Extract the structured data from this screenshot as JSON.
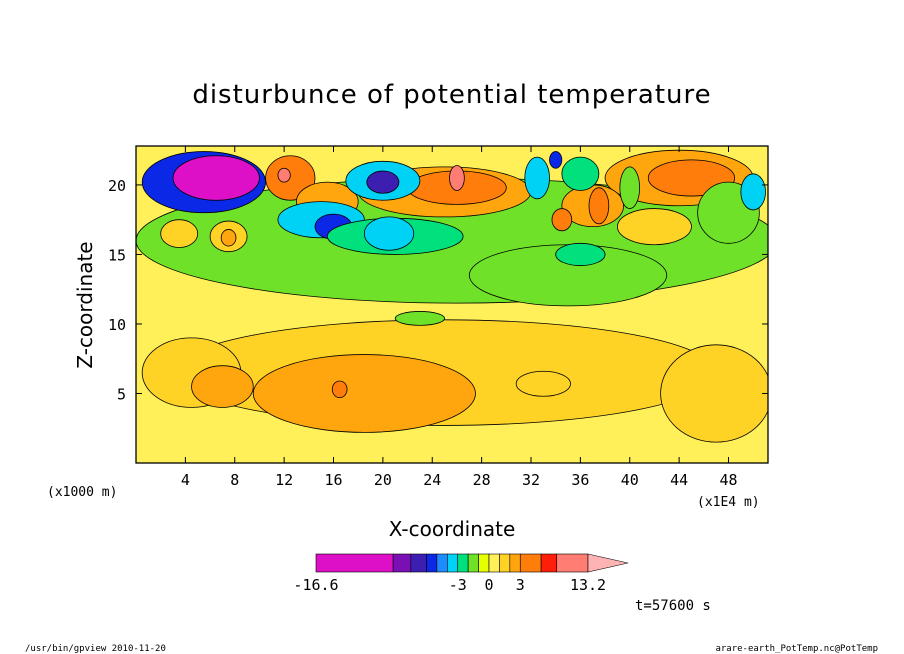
{
  "chart_data": {
    "type": "heatmap",
    "title": "disturbunce of potential temperature",
    "xlabel": "X-coordinate",
    "ylabel": "Z-coordinate",
    "x_unit_left": "(x1000 m)",
    "x_unit_right": "(x1E4 m)",
    "x_ticks": [
      "4",
      "8",
      "12",
      "16",
      "20",
      "24",
      "28",
      "32",
      "36",
      "40",
      "44",
      "48"
    ],
    "x_tick_values": [
      4,
      8,
      12,
      16,
      20,
      24,
      28,
      32,
      36,
      40,
      44,
      48
    ],
    "y_ticks": [
      "5",
      "10",
      "15",
      "20"
    ],
    "y_tick_values": [
      5,
      10,
      15,
      20
    ],
    "xlim": [
      0,
      51.2
    ],
    "ylim": [
      0,
      22.8
    ],
    "colorbar": {
      "min_label": "-16.6",
      "max_label": "13.2",
      "tick_labels": [
        "-3",
        "0",
        "3"
      ],
      "tick_values": [
        -3,
        0,
        3
      ],
      "levels": [
        -16.6,
        -9.2,
        -7.5,
        -6,
        -5,
        -4,
        -3,
        -2,
        -1,
        0,
        1,
        2,
        3,
        5,
        6.5,
        9.5,
        13.2
      ],
      "colors": [
        "#dd10c8",
        "#7a10b4",
        "#3c1eb0",
        "#0a28e6",
        "#1e8cff",
        "#00d2f5",
        "#00e17d",
        "#6ee128",
        "#e6ff00",
        "#fff05a",
        "#ffd226",
        "#ffa50d",
        "#ff7d0a",
        "#ff1e0a",
        "#ff7d73",
        "#ffb4b4"
      ]
    },
    "regions": [
      {
        "x": 25,
        "y": 6.5,
        "rx": 22,
        "ry": 3.8,
        "value": 1.5
      },
      {
        "x": 4.5,
        "y": 6.5,
        "rx": 4,
        "ry": 2.5,
        "value": 1.5
      },
      {
        "x": 33,
        "y": 5.7,
        "rx": 2.2,
        "ry": 0.9,
        "value": 1.5
      },
      {
        "x": 47,
        "y": 5,
        "rx": 4.5,
        "ry": 3.5,
        "value": 1.5
      },
      {
        "x": 18.5,
        "y": 5,
        "rx": 9,
        "ry": 2.8,
        "value": 2.5
      },
      {
        "x": 7,
        "y": 5.5,
        "rx": 2.5,
        "ry": 1.5,
        "value": 2.5
      },
      {
        "x": 16.5,
        "y": 5.3,
        "rx": 0.6,
        "ry": 0.6,
        "value": 3.5
      },
      {
        "x": 26,
        "y": 16,
        "rx": 26,
        "ry": 4.5,
        "value": -1.5
      },
      {
        "x": 35,
        "y": 13.5,
        "rx": 8,
        "ry": 2.2,
        "value": -1.5
      },
      {
        "x": 23,
        "y": 10.4,
        "rx": 2,
        "ry": 0.5,
        "value": -1.5
      },
      {
        "x": 25,
        "y": 19.5,
        "rx": 7,
        "ry": 1.8,
        "value": 2.5
      },
      {
        "x": 26,
        "y": 19.8,
        "rx": 4,
        "ry": 1.2,
        "value": 4
      },
      {
        "x": 26,
        "y": 20.5,
        "rx": 0.6,
        "ry": 0.9,
        "value": 7
      },
      {
        "x": 12.5,
        "y": 20.5,
        "rx": 2,
        "ry": 1.6,
        "value": 4
      },
      {
        "x": 12,
        "y": 20.7,
        "rx": 0.5,
        "ry": 0.5,
        "value": 7
      },
      {
        "x": 15.5,
        "y": 18.8,
        "rx": 2.5,
        "ry": 1.4,
        "value": 2.5
      },
      {
        "x": 44,
        "y": 20.5,
        "rx": 6,
        "ry": 2,
        "value": 2.5
      },
      {
        "x": 45,
        "y": 20.5,
        "rx": 3.5,
        "ry": 1.3,
        "value": 4
      },
      {
        "x": 37,
        "y": 18.5,
        "rx": 2.5,
        "ry": 1.5,
        "value": 2.5
      },
      {
        "x": 34.5,
        "y": 17.5,
        "rx": 0.8,
        "ry": 0.8,
        "value": 4
      },
      {
        "x": 37.5,
        "y": 18.5,
        "rx": 0.8,
        "ry": 1.3,
        "value": 4
      },
      {
        "x": 3.5,
        "y": 16.5,
        "rx": 1.5,
        "ry": 1,
        "value": 1.5
      },
      {
        "x": 7.5,
        "y": 16.3,
        "rx": 1.5,
        "ry": 1.1,
        "value": 1.5
      },
      {
        "x": 7.5,
        "y": 16.2,
        "rx": 0.6,
        "ry": 0.6,
        "value": 2.5
      },
      {
        "x": 42,
        "y": 17,
        "rx": 3,
        "ry": 1.3,
        "value": 1.5
      },
      {
        "x": 5.5,
        "y": 20.2,
        "rx": 5,
        "ry": 2.2,
        "value": -5.5
      },
      {
        "x": 6.5,
        "y": 20.5,
        "rx": 3.5,
        "ry": 1.6,
        "value": -11
      },
      {
        "x": 15,
        "y": 17.5,
        "rx": 3.5,
        "ry": 1.3,
        "value": -4
      },
      {
        "x": 16,
        "y": 17,
        "rx": 1.5,
        "ry": 0.9,
        "value": -5.5
      },
      {
        "x": 21,
        "y": 16.3,
        "rx": 5.5,
        "ry": 1.3,
        "value": -2.5
      },
      {
        "x": 20.5,
        "y": 16.5,
        "rx": 2,
        "ry": 1.2,
        "value": -4
      },
      {
        "x": 20,
        "y": 20.3,
        "rx": 3,
        "ry": 1.4,
        "value": -3.5
      },
      {
        "x": 20,
        "y": 20.2,
        "rx": 1.3,
        "ry": 0.8,
        "value": -6.5
      },
      {
        "x": 32.5,
        "y": 20.5,
        "rx": 1,
        "ry": 1.5,
        "value": -4
      },
      {
        "x": 36,
        "y": 20.8,
        "rx": 1.5,
        "ry": 1.2,
        "value": -2.5
      },
      {
        "x": 34,
        "y": 21.8,
        "rx": 0.5,
        "ry": 0.6,
        "value": -5.5
      },
      {
        "x": 48,
        "y": 18,
        "rx": 2.5,
        "ry": 2.2,
        "value": -1.5
      },
      {
        "x": 50,
        "y": 19.5,
        "rx": 1,
        "ry": 1.3,
        "value": -3.5
      },
      {
        "x": 36,
        "y": 15,
        "rx": 2,
        "ry": 0.8,
        "value": -2.5
      },
      {
        "x": 40,
        "y": 19.8,
        "rx": 0.8,
        "ry": 1.5,
        "value": -1.5
      }
    ],
    "annotation": "t=57600 s"
  },
  "footer": {
    "left": "/usr/bin/gpview  2010-11-20",
    "right": "arare-earth_PotTemp.nc@PotTemp"
  }
}
